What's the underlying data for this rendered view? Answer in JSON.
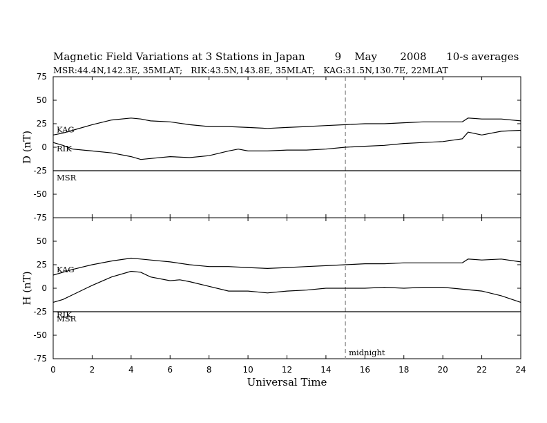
{
  "title": {
    "main": "Magnetic Field Variations at 3 Stations in Japan",
    "date_day": "9",
    "date_month": "May",
    "date_year": "2008",
    "avg": "10-s averages"
  },
  "subtitle": "MSR:44.4N,142.3E, 35MLAT;   RIK:43.5N,143.8E, 35MLAT;   KAG:31.5N,130.7E, 22MLAT",
  "xlabel": "Universal Time",
  "midnight_label": "midnight",
  "chart_data": [
    {
      "type": "line",
      "ylabel": "D (nT)",
      "ylim": [
        -75,
        75
      ],
      "yticks": [
        75,
        50,
        25,
        0,
        -25,
        -50,
        -75
      ],
      "xlim": [
        0,
        24
      ],
      "xticks": [
        0,
        2,
        4,
        6,
        8,
        10,
        12,
        14,
        16,
        18,
        20,
        22,
        24
      ],
      "midnight_ut": 15,
      "series": [
        {
          "name": "KAG",
          "x": [
            0,
            0.5,
            1,
            2,
            3,
            4,
            4.5,
            5,
            6,
            7,
            8,
            9,
            10,
            11,
            12,
            13,
            14,
            15,
            16,
            17,
            18,
            19,
            20,
            21,
            21.3,
            22,
            23,
            24
          ],
          "values": [
            13,
            15,
            18,
            24,
            29,
            31,
            30,
            28,
            27,
            24,
            22,
            22,
            21,
            20,
            21,
            22,
            23,
            24,
            25,
            25,
            26,
            27,
            27,
            27,
            31,
            30,
            30,
            28
          ]
        },
        {
          "name": "RIK",
          "x": [
            0,
            0.5,
            1,
            2,
            3,
            4,
            4.5,
            5,
            6,
            7,
            8,
            9,
            9.5,
            10,
            11,
            12,
            13,
            14,
            15,
            16,
            17,
            18,
            19,
            20,
            21,
            21.3,
            22,
            23,
            24
          ],
          "values": [
            5,
            2,
            -2,
            -4,
            -6,
            -10,
            -13,
            -12,
            -10,
            -11,
            -9,
            -4,
            -2,
            -4,
            -4,
            -3,
            -3,
            -2,
            0,
            1,
            2,
            4,
            5,
            6,
            9,
            16,
            13,
            17,
            18
          ]
        },
        {
          "name": "MSR",
          "x": [
            0,
            24
          ],
          "values": [
            -25,
            -25
          ]
        }
      ]
    },
    {
      "type": "line",
      "ylabel": "H (nT)",
      "ylim": [
        -75,
        75
      ],
      "yticks": [
        75,
        50,
        25,
        0,
        -25,
        -50,
        -75
      ],
      "xlim": [
        0,
        24
      ],
      "xticks": [
        0,
        2,
        4,
        6,
        8,
        10,
        12,
        14,
        16,
        18,
        20,
        22,
        24
      ],
      "midnight_ut": 15,
      "series": [
        {
          "name": "KAG",
          "x": [
            0,
            0.5,
            1,
            2,
            3,
            4,
            4.5,
            5,
            6,
            7,
            8,
            9,
            10,
            11,
            12,
            13,
            14,
            15,
            16,
            17,
            18,
            19,
            20,
            21,
            21.3,
            22,
            23,
            24
          ],
          "values": [
            14,
            17,
            20,
            25,
            29,
            32,
            31,
            30,
            28,
            25,
            23,
            23,
            22,
            21,
            22,
            23,
            24,
            25,
            26,
            26,
            27,
            27,
            27,
            27,
            31,
            30,
            31,
            28
          ]
        },
        {
          "name": "RIK",
          "x": [
            0,
            0.5,
            1,
            2,
            3,
            4,
            4.5,
            5,
            6,
            6.5,
            7,
            8,
            9,
            10,
            11,
            12,
            13,
            14,
            15,
            16,
            17,
            18,
            19,
            20,
            21,
            22,
            23,
            24
          ],
          "values": [
            -15,
            -12,
            -7,
            3,
            12,
            18,
            17,
            12,
            8,
            9,
            7,
            2,
            -3,
            -3,
            -5,
            -3,
            -2,
            0,
            0,
            0,
            1,
            0,
            1,
            1,
            -1,
            -3,
            -8,
            -15
          ]
        },
        {
          "name": "MSR",
          "x": [
            0,
            24
          ],
          "values": [
            -25,
            -25
          ]
        }
      ]
    }
  ]
}
